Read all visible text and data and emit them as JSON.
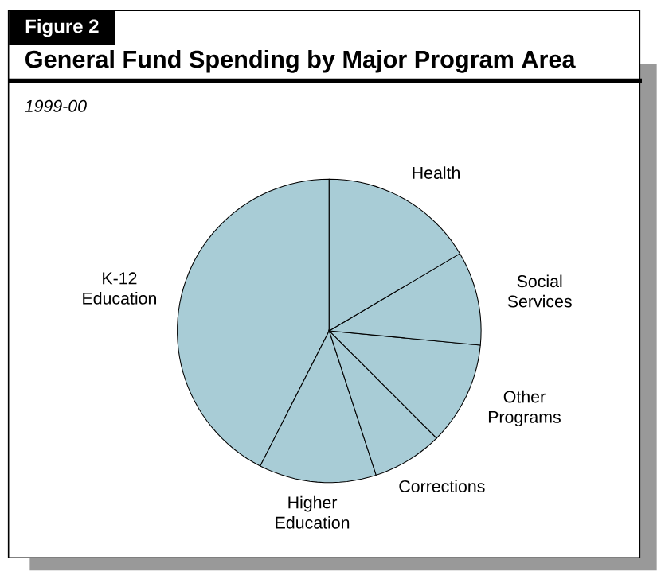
{
  "chart_data": {
    "type": "pie",
    "title": "General Fund Spending by Major Program Area",
    "subtitle": "1999-00",
    "annotations": [
      "Figure 2"
    ],
    "categories": [
      "K-12 Education",
      "Higher Education",
      "Corrections",
      "Other Programs",
      "Social Services",
      "Health"
    ],
    "values": [
      42.5,
      12.5,
      7.5,
      11,
      10,
      16.5
    ],
    "colors": [
      "#a8ccd6",
      "#a8ccd6",
      "#a8ccd6",
      "#a8ccd6",
      "#a8ccd6",
      "#a8ccd6"
    ]
  }
}
